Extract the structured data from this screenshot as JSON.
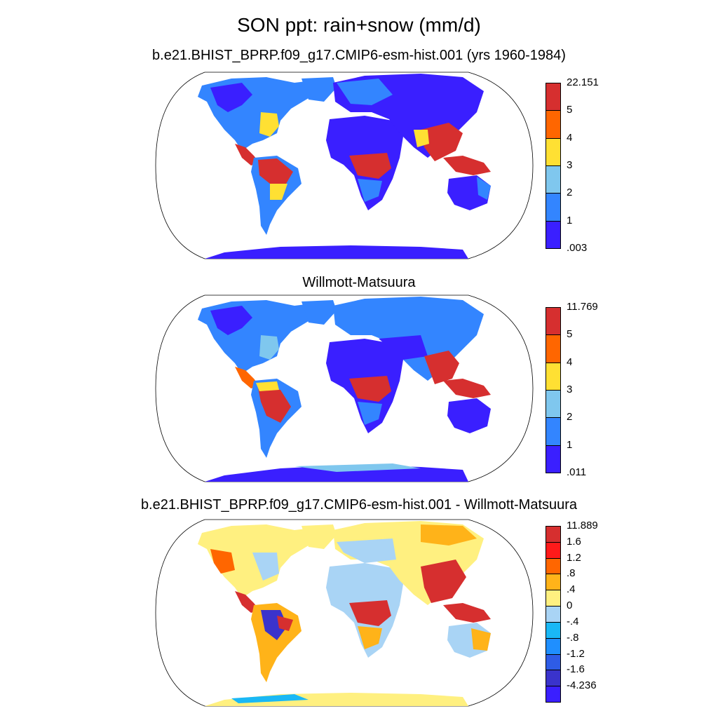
{
  "title": "SON ppt: rain+snow (mm/d)",
  "panels": [
    {
      "title": "b.e21.BHIST_BPRP.f09_g17.CMIP6-esm-hist.001 (yrs 1960-1984)",
      "colorbar": {
        "labels": [
          "22.151",
          "5",
          "4",
          "3",
          "2",
          "1",
          ".003"
        ],
        "colors": [
          "#d62f2f",
          "#ff6600",
          "#ffe033",
          "#7fc7ee",
          "#3385ff",
          "#3a1fff"
        ]
      }
    },
    {
      "title": "Willmott-Matsuura",
      "colorbar": {
        "labels": [
          "11.769",
          "5",
          "4",
          "3",
          "2",
          "1",
          ".011"
        ],
        "colors": [
          "#d62f2f",
          "#ff6600",
          "#ffe033",
          "#7fc7ee",
          "#3385ff",
          "#3a1fff"
        ]
      }
    },
    {
      "title": "b.e21.BHIST_BPRP.f09_g17.CMIP6-esm-hist.001 - Willmott-Matsuura",
      "colorbar": {
        "labels": [
          "11.889",
          "1.6",
          "1.2",
          ".8",
          ".4",
          "0",
          "-.4",
          "-.8",
          "-1.2",
          "-1.6",
          "-4.236"
        ],
        "colors": [
          "#d62f2f",
          "#ff1a1a",
          "#ff6600",
          "#ffb319",
          "#fff080",
          "#a9d4f5",
          "#1ab8f5",
          "#1f8fff",
          "#2e5ce6",
          "#3a33cc",
          "#3a1fff"
        ]
      }
    }
  ]
}
